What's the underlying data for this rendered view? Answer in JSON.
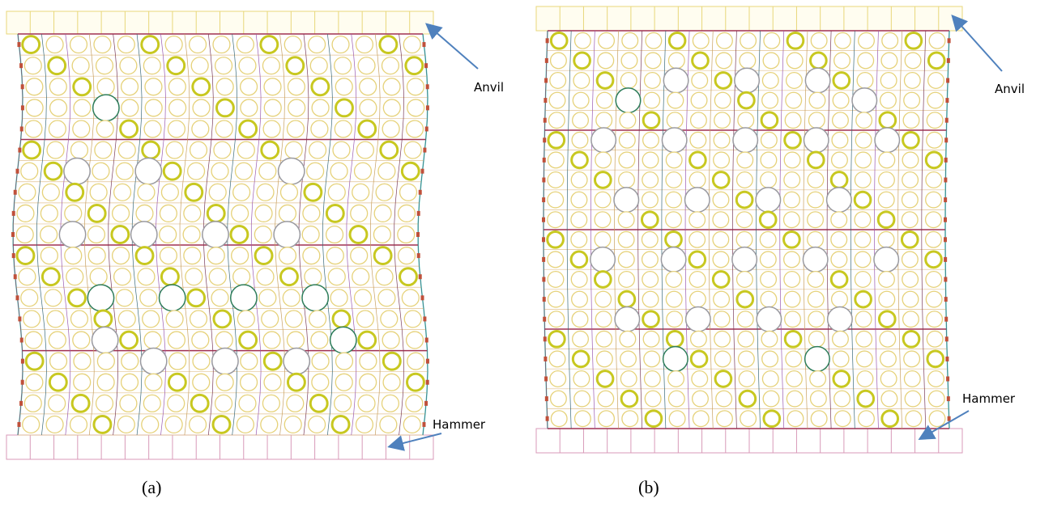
{
  "panels": [
    {
      "caption": "(a)",
      "top_label": "Anvil",
      "bottom_label": "Hammer"
    },
    {
      "caption": "(b)",
      "top_label": "Anvil",
      "bottom_label": "Hammer"
    }
  ]
}
